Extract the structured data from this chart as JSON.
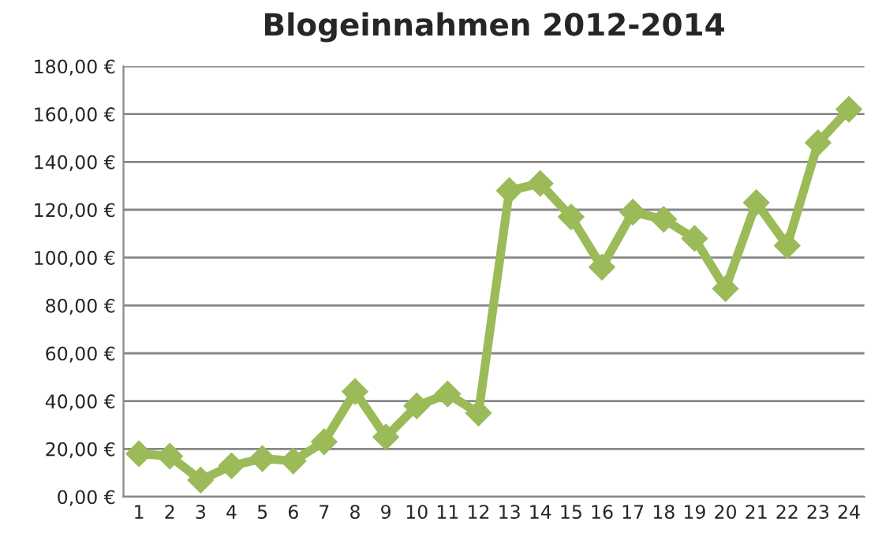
{
  "chart_data": {
    "type": "line",
    "title": "Blogeinnahmen 2012-2014",
    "categories": [
      "1",
      "2",
      "3",
      "4",
      "5",
      "6",
      "7",
      "8",
      "9",
      "10",
      "11",
      "12",
      "13",
      "14",
      "15",
      "16",
      "17",
      "18",
      "19",
      "20",
      "21",
      "22",
      "23",
      "24"
    ],
    "series": [
      {
        "color": "#9bbb59",
        "values": [
          18,
          17,
          7,
          13,
          16,
          15,
          23,
          44,
          25,
          38,
          43,
          35,
          128,
          131,
          117,
          96,
          119,
          116,
          108,
          87,
          123,
          105,
          148,
          162
        ]
      }
    ],
    "ylim": [
      0,
      180
    ],
    "yticks": [
      {
        "value": 0,
        "label": "0,00 €"
      },
      {
        "value": 20,
        "label": "20,00 €"
      },
      {
        "value": 40,
        "label": "40,00 €"
      },
      {
        "value": 60,
        "label": "60,00 €"
      },
      {
        "value": 80,
        "label": "80,00 €"
      },
      {
        "value": 100,
        "label": "100,00 €"
      },
      {
        "value": 120,
        "label": "120,00 €"
      },
      {
        "value": 140,
        "label": "140,00 €"
      },
      {
        "value": 160,
        "label": "160,00 €"
      },
      {
        "value": 180,
        "label": "180,00 €"
      }
    ],
    "grid": "y",
    "marker": "diamond",
    "line_style": "solid",
    "legend": false
  }
}
